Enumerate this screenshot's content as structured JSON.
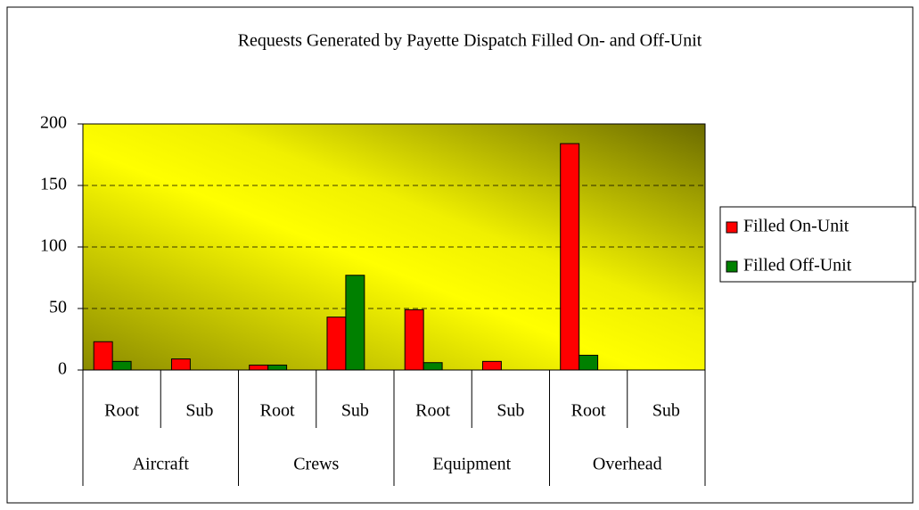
{
  "chart_data": {
    "type": "bar",
    "title": "Requests Generated by Payette Dispatch Filled On- and Off-Unit",
    "categories": [
      "Root",
      "Sub",
      "Root",
      "Sub",
      "Root",
      "Sub",
      "Root",
      "Sub"
    ],
    "groups": [
      "Aircraft",
      "Crews",
      "Equipment",
      "Overhead"
    ],
    "series": [
      {
        "name": "Filled On-Unit",
        "color": "#ff0000",
        "values": [
          23,
          9,
          4,
          43,
          49,
          7,
          184,
          0
        ]
      },
      {
        "name": "Filled Off-Unit",
        "color": "#008000",
        "values": [
          7,
          0,
          4,
          77,
          6,
          0,
          12,
          0
        ]
      }
    ],
    "ylim": [
      0,
      200
    ],
    "yticks": [
      0,
      50,
      100,
      150,
      200
    ],
    "grid": true,
    "legend": "right"
  }
}
